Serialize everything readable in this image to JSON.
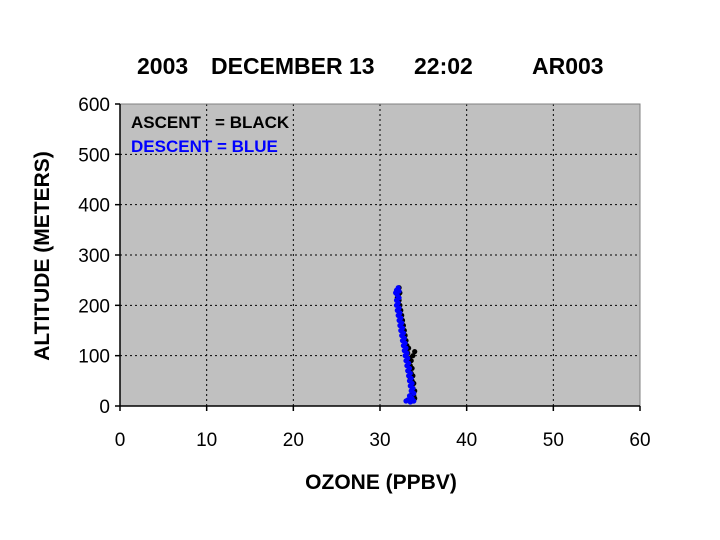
{
  "chart_data": {
    "type": "scatter",
    "title_parts": [
      "2003",
      "DECEMBER 13",
      "22:02",
      "AR003"
    ],
    "xlabel": "OZONE (PPBV)",
    "ylabel": "ALTITUDE (METERS)",
    "xlim": [
      0,
      60
    ],
    "ylim": [
      0,
      600
    ],
    "xticks": [
      0,
      10,
      20,
      30,
      40,
      50,
      60
    ],
    "yticks": [
      0,
      100,
      200,
      300,
      400,
      500,
      600
    ],
    "grid": true,
    "background": "#c0c0c0",
    "legend_placement": "top-left",
    "series": [
      {
        "name": "ASCENT",
        "legend_text": "ASCENT   = BLACK",
        "color": "#000000",
        "points": [
          [
            33.8,
            10
          ],
          [
            34.0,
            15
          ],
          [
            33.9,
            20
          ],
          [
            33.7,
            25
          ],
          [
            34.0,
            30
          ],
          [
            33.8,
            35
          ],
          [
            33.6,
            40
          ],
          [
            33.9,
            45
          ],
          [
            33.7,
            50
          ],
          [
            33.5,
            55
          ],
          [
            33.8,
            60
          ],
          [
            33.6,
            65
          ],
          [
            33.4,
            70
          ],
          [
            33.7,
            75
          ],
          [
            33.5,
            80
          ],
          [
            33.3,
            85
          ],
          [
            33.6,
            90
          ],
          [
            33.4,
            95
          ],
          [
            33.8,
            100
          ],
          [
            34.0,
            108
          ],
          [
            33.2,
            105
          ],
          [
            33.0,
            110
          ],
          [
            33.3,
            115
          ],
          [
            33.1,
            120
          ],
          [
            32.9,
            125
          ],
          [
            33.0,
            130
          ],
          [
            32.8,
            135
          ],
          [
            32.9,
            140
          ],
          [
            32.7,
            145
          ],
          [
            32.8,
            150
          ],
          [
            32.6,
            155
          ],
          [
            32.7,
            160
          ],
          [
            32.5,
            165
          ],
          [
            32.6,
            170
          ],
          [
            32.4,
            175
          ],
          [
            32.5,
            180
          ],
          [
            32.3,
            185
          ],
          [
            32.4,
            190
          ],
          [
            32.2,
            195
          ],
          [
            32.3,
            200
          ],
          [
            32.1,
            205
          ],
          [
            32.2,
            210
          ],
          [
            32.0,
            215
          ],
          [
            32.1,
            220
          ],
          [
            32.3,
            225
          ],
          [
            32.0,
            230
          ],
          [
            32.2,
            235
          ]
        ]
      },
      {
        "name": "DESCENT",
        "legend_text": "DESCENT = BLUE",
        "color": "#0000ff",
        "points": [
          [
            32.1,
            235
          ],
          [
            31.9,
            230
          ],
          [
            32.2,
            228
          ],
          [
            31.8,
            225
          ],
          [
            32.0,
            220
          ],
          [
            32.2,
            215
          ],
          [
            31.9,
            210
          ],
          [
            32.1,
            205
          ],
          [
            31.9,
            200
          ],
          [
            32.2,
            195
          ],
          [
            32.0,
            190
          ],
          [
            32.3,
            185
          ],
          [
            32.1,
            180
          ],
          [
            32.4,
            175
          ],
          [
            32.2,
            170
          ],
          [
            32.5,
            165
          ],
          [
            32.3,
            160
          ],
          [
            32.6,
            155
          ],
          [
            32.4,
            150
          ],
          [
            32.7,
            145
          ],
          [
            32.5,
            140
          ],
          [
            32.8,
            135
          ],
          [
            32.6,
            130
          ],
          [
            32.9,
            125
          ],
          [
            32.7,
            120
          ],
          [
            33.0,
            115
          ],
          [
            32.8,
            110
          ],
          [
            33.1,
            105
          ],
          [
            32.9,
            100
          ],
          [
            33.2,
            95
          ],
          [
            33.0,
            90
          ],
          [
            33.3,
            85
          ],
          [
            33.1,
            80
          ],
          [
            33.4,
            75
          ],
          [
            33.2,
            70
          ],
          [
            33.5,
            65
          ],
          [
            33.3,
            60
          ],
          [
            33.6,
            55
          ],
          [
            33.4,
            50
          ],
          [
            33.7,
            45
          ],
          [
            33.5,
            40
          ],
          [
            33.8,
            35
          ],
          [
            33.6,
            30
          ],
          [
            33.9,
            25
          ],
          [
            33.4,
            20
          ],
          [
            33.7,
            15
          ],
          [
            33.2,
            12
          ],
          [
            33.9,
            10
          ],
          [
            33.5,
            8
          ],
          [
            33.0,
            10
          ]
        ]
      }
    ]
  }
}
